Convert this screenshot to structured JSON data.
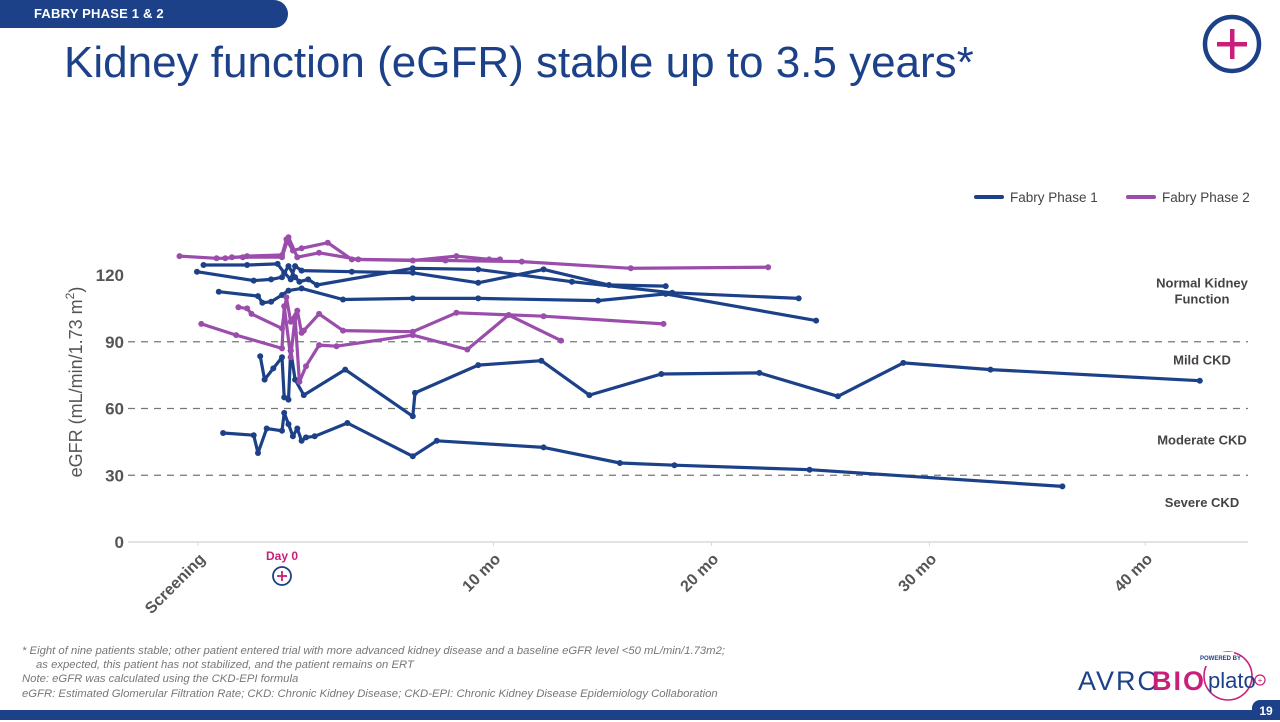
{
  "header": {
    "section_tab": "FABRY PHASE 1 & 2",
    "title": "Kidney function (eGFR) stable up to 3.5 years*",
    "page_number": "19"
  },
  "colors": {
    "brand_blue": "#1c4188",
    "phase1": "#1c4188",
    "phase2": "#9b4dab",
    "accent_magenta": "#c8207a",
    "grid": "#777777",
    "axis_text": "#555555"
  },
  "chart_data": {
    "type": "line",
    "title": "",
    "xlabel": "",
    "ylabel": "eGFR (mL/min/1.73 m",
    "ylabel_superscript": "2",
    "ylabel_close": ")",
    "xlim": [
      -5.2,
      43.5
    ],
    "ylim": [
      0,
      135
    ],
    "y_ticks": [
      0,
      30,
      60,
      90,
      120
    ],
    "x_ticks": [
      {
        "value": -3.85,
        "label": "Screening"
      },
      {
        "value": 9.7,
        "label": "10 mo"
      },
      {
        "value": 19.7,
        "label": "20 mo"
      },
      {
        "value": 29.7,
        "label": "30 mo"
      },
      {
        "value": 39.6,
        "label": "40 mo"
      }
    ],
    "day0": {
      "value": 0,
      "label": "Day 0"
    },
    "reference_lines": [
      30,
      60,
      90
    ],
    "zones": [
      {
        "label_lines": [
          "Normal Kidney",
          "Function"
        ],
        "y": 113
      },
      {
        "label_lines": [
          "Mild CKD"
        ],
        "y": 82
      },
      {
        "label_lines": [
          "Moderate CKD"
        ],
        "y": 46
      },
      {
        "label_lines": [
          "Severe CKD"
        ],
        "y": 18
      }
    ],
    "legend": {
      "placement": "top-right",
      "entries": [
        {
          "name": "Fabry Phase 1",
          "color": "#1c4188"
        },
        {
          "name": "Fabry Phase 2",
          "color": "#9b4dab"
        }
      ]
    },
    "series": [
      {
        "name": "Fabry Phase 1",
        "patient": "P1-A",
        "color": "#1c4188",
        "points": [
          [
            -3.6,
            124.5
          ],
          [
            -1.6,
            124.5
          ],
          [
            -0.2,
            125
          ],
          [
            0.1,
            121
          ],
          [
            0.4,
            118
          ],
          [
            0.6,
            124
          ],
          [
            0.9,
            122
          ],
          [
            3.2,
            121.5
          ],
          [
            6.0,
            121
          ],
          [
            9.0,
            116.5
          ],
          [
            12.0,
            122.5
          ],
          [
            15.0,
            115.5
          ],
          [
            17.6,
            115
          ]
        ]
      },
      {
        "name": "Fabry Phase 1",
        "patient": "P1-B",
        "color": "#1c4188",
        "points": [
          [
            -3.9,
            121.5
          ],
          [
            -1.3,
            117.5
          ],
          [
            -0.5,
            118
          ],
          [
            0,
            119
          ],
          [
            0.3,
            124
          ],
          [
            0.6,
            119
          ],
          [
            0.8,
            117
          ],
          [
            1.2,
            118
          ],
          [
            1.6,
            115.5
          ],
          [
            6.0,
            123
          ],
          [
            9.0,
            122.5
          ],
          [
            13.3,
            117
          ],
          [
            17.9,
            112
          ],
          [
            23.7,
            109.5
          ]
        ]
      },
      {
        "name": "Fabry Phase 1",
        "patient": "P1-C",
        "color": "#1c4188",
        "points": [
          [
            -2.9,
            112.5
          ],
          [
            -1.1,
            110.5
          ],
          [
            -0.9,
            107.5
          ],
          [
            -0.5,
            108
          ],
          [
            0,
            111
          ],
          [
            0.3,
            113
          ],
          [
            0.9,
            114
          ],
          [
            2.8,
            109
          ],
          [
            6.0,
            109.5
          ],
          [
            9.0,
            109.5
          ],
          [
            14.5,
            108.5
          ],
          [
            17.6,
            111.5
          ],
          [
            24.5,
            99.5
          ]
        ]
      },
      {
        "name": "Fabry Phase 1",
        "patient": "P1-D",
        "color": "#1c4188",
        "points": [
          [
            -1.0,
            83.5
          ],
          [
            -0.8,
            73
          ],
          [
            -0.4,
            78
          ],
          [
            0,
            83
          ],
          [
            0.1,
            65
          ],
          [
            0.3,
            64
          ],
          [
            0.4,
            86
          ],
          [
            0.6,
            73
          ],
          [
            1.0,
            66
          ],
          [
            2.9,
            77.5
          ],
          [
            6.0,
            56.5
          ],
          [
            6.1,
            67
          ],
          [
            9.0,
            79.5
          ],
          [
            11.9,
            81.5
          ],
          [
            14.1,
            66
          ],
          [
            17.4,
            75.5
          ],
          [
            21.9,
            76
          ],
          [
            25.5,
            65.5
          ],
          [
            28.5,
            80.5
          ],
          [
            32.5,
            77.5
          ],
          [
            42.1,
            72.5
          ]
        ]
      },
      {
        "name": "Fabry Phase 1",
        "patient": "P1-E",
        "color": "#1c4188",
        "points": [
          [
            -2.7,
            49
          ],
          [
            -1.3,
            48
          ],
          [
            -1.1,
            40
          ],
          [
            -0.7,
            51
          ],
          [
            0,
            50
          ],
          [
            0.1,
            58
          ],
          [
            0.3,
            53
          ],
          [
            0.5,
            47.5
          ],
          [
            0.7,
            51
          ],
          [
            0.9,
            45.5
          ],
          [
            1.1,
            47
          ],
          [
            1.5,
            47.5
          ],
          [
            3.0,
            53.5
          ],
          [
            6.0,
            38.5
          ],
          [
            7.1,
            45.5
          ],
          [
            12.0,
            42.5
          ],
          [
            15.5,
            35.5
          ],
          [
            18.0,
            34.5
          ],
          [
            24.2,
            32.5
          ],
          [
            35.8,
            25
          ]
        ]
      },
      {
        "name": "Fabry Phase 2",
        "patient": "P2-A",
        "color": "#9b4dab",
        "points": [
          [
            -4.7,
            128.5
          ],
          [
            -3.0,
            127.5
          ],
          [
            -2.6,
            127.5
          ],
          [
            -1.6,
            128.5
          ],
          [
            0,
            129
          ],
          [
            0.2,
            136
          ],
          [
            0.5,
            131
          ],
          [
            0.9,
            132
          ],
          [
            2.1,
            134.5
          ],
          [
            3.2,
            127
          ],
          [
            6.0,
            126.5
          ],
          [
            8.0,
            128.5
          ],
          [
            9.5,
            127
          ],
          [
            10.0,
            127
          ]
        ]
      },
      {
        "name": "Fabry Phase 2",
        "patient": "P2-B",
        "color": "#9b4dab",
        "points": [
          [
            -2.3,
            128
          ],
          [
            -1.8,
            128
          ],
          [
            0,
            128
          ],
          [
            0.3,
            137
          ],
          [
            0.7,
            128
          ],
          [
            1.7,
            130
          ],
          [
            3.5,
            127
          ],
          [
            7.5,
            126.5
          ],
          [
            11.0,
            126
          ],
          [
            16.0,
            123
          ],
          [
            22.3,
            123.5
          ]
        ]
      },
      {
        "name": "Fabry Phase 2",
        "patient": "P2-C",
        "color": "#9b4dab",
        "points": [
          [
            -2.0,
            105.5
          ],
          [
            -1.6,
            105
          ],
          [
            -1.4,
            102.5
          ],
          [
            0,
            96
          ],
          [
            0.2,
            110
          ],
          [
            0.4,
            99
          ],
          [
            0.7,
            104
          ],
          [
            0.9,
            94
          ],
          [
            1.0,
            95
          ],
          [
            1.7,
            102.5
          ],
          [
            2.8,
            95
          ],
          [
            6.0,
            94.5
          ],
          [
            8.0,
            103
          ],
          [
            12.0,
            101.5
          ],
          [
            17.5,
            98
          ]
        ]
      },
      {
        "name": "Fabry Phase 2",
        "patient": "P2-D",
        "color": "#9b4dab",
        "points": [
          [
            -3.7,
            98
          ],
          [
            -2.1,
            93
          ],
          [
            0,
            87
          ],
          [
            0.1,
            106
          ],
          [
            0.4,
            83
          ],
          [
            0.6,
            101
          ],
          [
            0.8,
            72
          ],
          [
            1.1,
            79
          ],
          [
            1.7,
            88.5
          ],
          [
            2.5,
            88
          ],
          [
            6.0,
            93
          ],
          [
            8.5,
            86.5
          ],
          [
            10.4,
            102
          ],
          [
            12.8,
            90.5
          ]
        ]
      }
    ]
  },
  "footnotes": [
    "* Eight of nine patients stable; other patient entered trial with more advanced kidney disease and a baseline eGFR level <50 mL/min/1.73m2;",
    "as expected, this patient has not stabilized, and the patient remains on ERT",
    "Note: eGFR was calculated using the CKD-EPI formula",
    "eGFR: Estimated Glomerular Filtration Rate; CKD: Chronic Kidney Disease; CKD-EPI: Chronic Kidney Disease Epidemiology Collaboration"
  ],
  "logo": {
    "company": "AVROBIO",
    "company_part1": "AVRO",
    "company_part2": "BIO",
    "powered_by": "POWERED BY",
    "platform": "plato"
  }
}
